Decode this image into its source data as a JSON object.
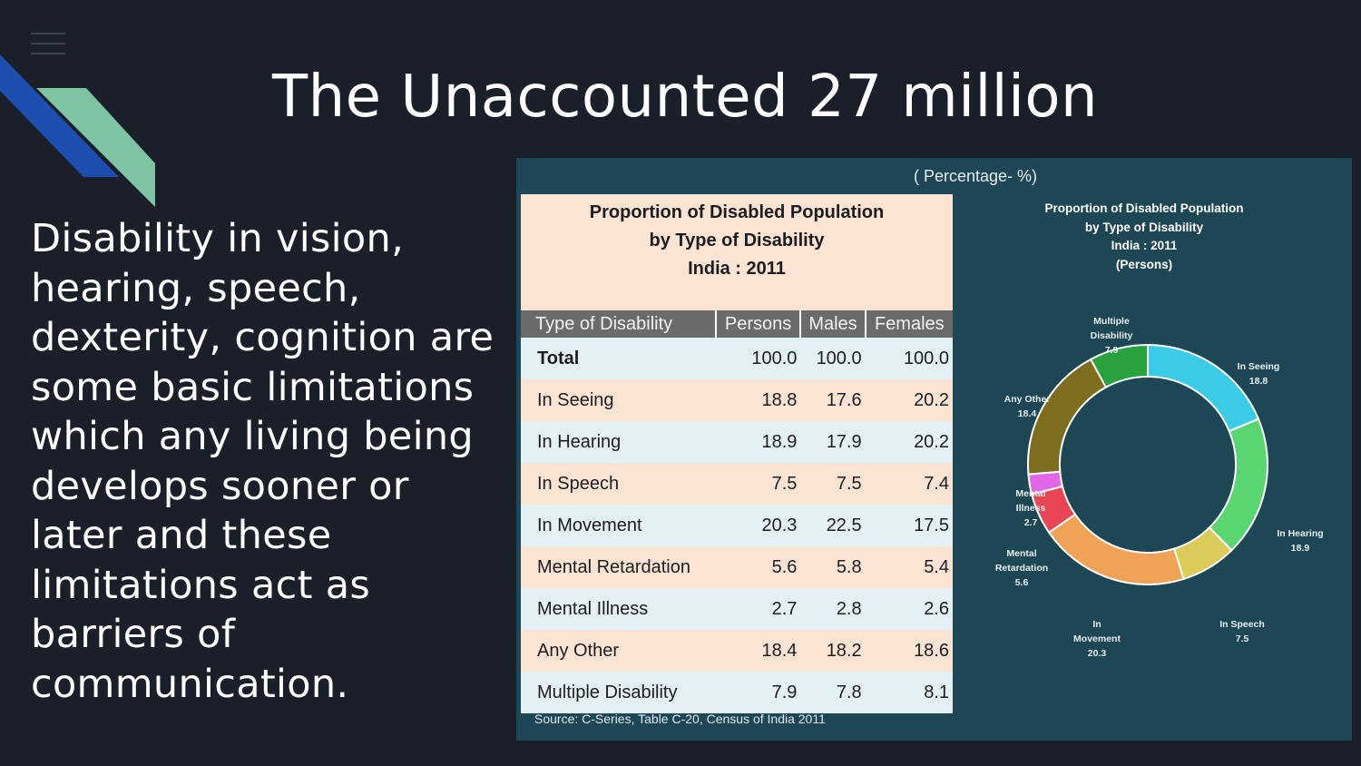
{
  "slide": {
    "title": "The Unaccounted 27 million",
    "body": "Disability in vision, hearing, speech, dexterity, cognition are some basic limitations which any living being develops sooner or later and these limitations act as barriers of communication."
  },
  "figure": {
    "percentage_note": "( Percentage- %)",
    "table_title_1": "Proportion of Disabled Population",
    "table_title_2": "by Type of Disability",
    "table_title_3": "India : 2011",
    "columns": [
      "Type of Disability",
      "Persons",
      "Males",
      "Females"
    ],
    "rows": [
      {
        "type": "Total",
        "persons": "100.0",
        "males": "100.0",
        "females": "100.0"
      },
      {
        "type": "In Seeing",
        "persons": "18.8",
        "males": "17.6",
        "females": "20.2"
      },
      {
        "type": "In Hearing",
        "persons": "18.9",
        "males": "17.9",
        "females": "20.2"
      },
      {
        "type": "In Speech",
        "persons": "7.5",
        "males": "7.5",
        "females": "7.4"
      },
      {
        "type": "In Movement",
        "persons": "20.3",
        "males": "22.5",
        "females": "17.5"
      },
      {
        "type": "Mental Retardation",
        "persons": "5.6",
        "males": "5.8",
        "females": "5.4"
      },
      {
        "type": "Mental Illness",
        "persons": "2.7",
        "males": "2.8",
        "females": "2.6"
      },
      {
        "type": "Any Other",
        "persons": "18.4",
        "males": "18.2",
        "females": "18.6"
      },
      {
        "type": "Multiple Disability",
        "persons": "7.9",
        "males": "7.8",
        "females": "8.1"
      }
    ],
    "source": "Source: C-Series, Table C-20, Census of India 2011"
  },
  "chart_data": {
    "type": "pie",
    "title_lines": [
      "Proportion of Disabled Population",
      "by Type of Disability",
      "India : 2011",
      "(Persons)"
    ],
    "slices": [
      {
        "label_lines": [
          "In Seeing",
          "18.8"
        ],
        "value": 18.8,
        "color": "#3ccbe6"
      },
      {
        "label_lines": [
          "In Hearing",
          "18.9"
        ],
        "value": 18.9,
        "color": "#5ad670"
      },
      {
        "label_lines": [
          "In Speech",
          "7.5"
        ],
        "value": 7.5,
        "color": "#dbcc5a"
      },
      {
        "label_lines": [
          "In",
          "Movement",
          "20.3"
        ],
        "value": 20.3,
        "color": "#f0a356"
      },
      {
        "label_lines": [
          "Mental",
          "Retardation",
          "5.6"
        ],
        "value": 5.6,
        "color": "#e84655"
      },
      {
        "label_lines": [
          "Mental",
          "Illness",
          "2.7"
        ],
        "value": 2.7,
        "color": "#e266e8"
      },
      {
        "label_lines": [
          "Any Other",
          "18.4"
        ],
        "value": 18.4,
        "color": "#7c6e1c"
      },
      {
        "label_lines": [
          "Multiple",
          "Disability",
          "7.9"
        ],
        "value": 7.9,
        "color": "#27a23c"
      }
    ]
  },
  "colors": {
    "background": "#1b1f2a",
    "panel": "#1d4754",
    "accent_blue": "#1c4fb0",
    "accent_green": "#7fc4a2"
  }
}
